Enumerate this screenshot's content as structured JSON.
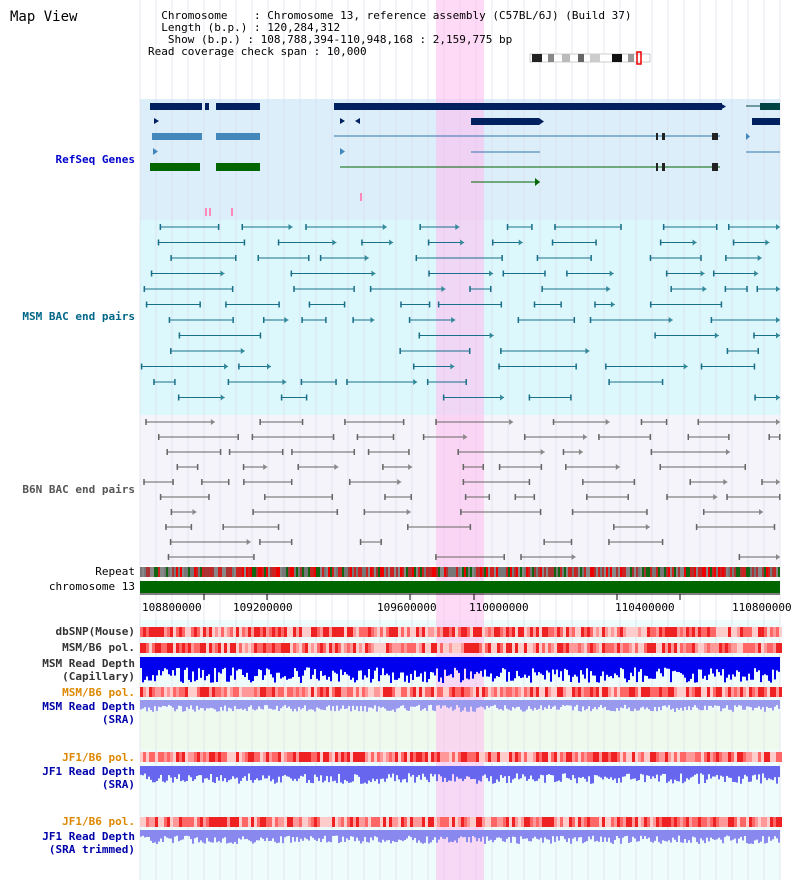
{
  "title": "Map View",
  "header": {
    "chromosome_key": "Chromosome",
    "chromosome_value": "Chromosome 13, reference assembly (C57BL/6J) (Build 37)",
    "length_key": "Length (b.p.)",
    "length_value": "120,284,312",
    "show_key": "Show (b.p.)",
    "show_value": "108,788,394-110,948,168 : 2,159,775 bp",
    "coverage_key": "Read coverage check span",
    "coverage_value": "10,000"
  },
  "tracks": {
    "refseq": "RefSeq Genes",
    "msm_bac": "MSM BAC end pairs",
    "b6n_bac": "B6N BAC end pairs",
    "repeat": "Repeat",
    "chromosome": "chromosome 13",
    "dbsnp": "dbSNP(Mouse)",
    "msm_b6_pol_1": "MSM/B6 pol.",
    "msm_read_depth_cap_1": "MSM Read Depth",
    "msm_read_depth_cap_2": "(Capillary)",
    "msm_b6_pol_2": "MSM/B6 pol.",
    "msm_read_depth_sra_1": "MSM Read Depth",
    "msm_read_depth_sra_2": "(SRA)",
    "jf1_b6_pol_1": "JF1/B6 pol.",
    "jf1_read_depth_sra_1": "JF1 Read Depth",
    "jf1_read_depth_sra_2": "(SRA)",
    "jf1_b6_pol_2": "JF1/B6 pol.",
    "jf1_read_depth_trim_1": "JF1 Read Depth",
    "jf1_read_depth_trim_2": "(SRA trimmed)"
  },
  "ruler": {
    "ticks": [
      "108800000",
      "109200000",
      "109600000",
      "110000000",
      "110400000",
      "110800000"
    ]
  },
  "colors": {
    "refseq_label": "#0000cc",
    "msm_label": "#006688",
    "b6n_label": "#555555",
    "orange_label": "#dd8800",
    "blue_label": "#0000aa",
    "highlight": "#ffbbee",
    "chromosome_bar": "#006600",
    "refseq_bg": "#dceefa",
    "msm_bg": "#dcf8fc",
    "b6n_bg": "#f0f0fa"
  }
}
